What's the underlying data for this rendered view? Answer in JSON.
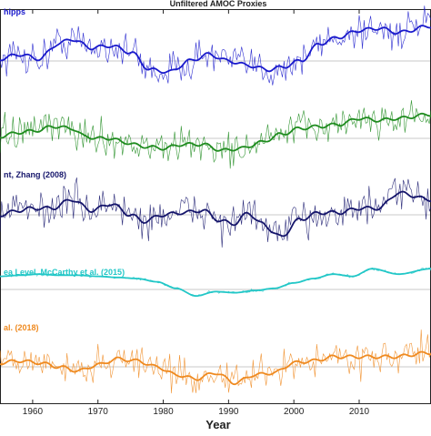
{
  "chart_data": {
    "type": "line",
    "title": "Unfiltered AMOC Proxies",
    "xlabel": "Year",
    "xlim": [
      1955,
      2021
    ],
    "x_ticks": [
      "1960",
      "1970",
      "1980",
      "1990",
      "2000",
      "2010"
    ],
    "series": [
      {
        "name": "hipps",
        "color": "#1a1acc",
        "baseline": 0,
        "amp": 1.2,
        "smooth_x": [
          1955,
          1958,
          1961,
          1964,
          1966,
          1969,
          1972,
          1975,
          1978,
          1981,
          1984,
          1987,
          1990,
          1993,
          1996,
          1998,
          2001,
          2004,
          2007,
          2010,
          2013,
          2016,
          2021
        ],
        "smooth_y": [
          0.1,
          0.3,
          0.1,
          0.8,
          1.0,
          0.6,
          0.7,
          0.4,
          -0.4,
          -0.5,
          0.0,
          0.3,
          0.0,
          -0.2,
          -0.4,
          -0.3,
          0.0,
          0.8,
          1.1,
          1.4,
          1.5,
          1.3,
          1.6
        ]
      },
      {
        "name": "",
        "color": "#1f8c1f",
        "baseline": 0,
        "amp": 1.2,
        "smooth_x": [
          1955,
          1958,
          1961,
          1963,
          1966,
          1968,
          1970,
          1972,
          1974,
          1977,
          1980,
          1983,
          1986,
          1989,
          1992,
          1995,
          1998,
          2001,
          2004,
          2007,
          2010,
          2013,
          2016,
          2021
        ],
        "smooth_y": [
          0.1,
          0.3,
          0.4,
          0.6,
          0.5,
          0.1,
          0.0,
          0.0,
          -0.2,
          -0.4,
          -0.5,
          -0.3,
          -0.3,
          -0.6,
          -0.5,
          -0.2,
          0.2,
          0.5,
          0.6,
          0.7,
          1.0,
          0.9,
          1.0,
          1.2
        ]
      },
      {
        "name": "nt, Zhang (2008)",
        "color": "#15156b",
        "baseline": 0,
        "amp": 1.2,
        "smooth_x": [
          1955,
          1958,
          1960,
          1963,
          1966,
          1969,
          1972,
          1975,
          1977,
          1980,
          1983,
          1986,
          1989,
          1991,
          1993,
          1995,
          1998,
          2001,
          2004,
          2007,
          2010,
          2013,
          2016,
          2021
        ],
        "smooth_y": [
          0.0,
          0.2,
          0.3,
          0.3,
          0.7,
          0.2,
          0.5,
          0.0,
          -0.3,
          0.0,
          0.1,
          0.2,
          -0.3,
          -0.4,
          0.1,
          -0.4,
          -1.0,
          -0.2,
          0.1,
          0.1,
          0.3,
          0.3,
          1.0,
          0.7
        ]
      },
      {
        "name": "ea Level, McCarthy et al. (2015)",
        "color": "#22c7c7",
        "baseline": 0,
        "amp": 0.2,
        "smooth_x": [
          1955,
          1958,
          1961,
          1964,
          1967,
          1970,
          1973,
          1976,
          1979,
          1982,
          1985,
          1988,
          1991,
          1994,
          1997,
          2000,
          2003,
          2006,
          2009,
          2012,
          2016,
          2021
        ],
        "smooth_y": [
          1.2,
          1.3,
          1.4,
          1.3,
          1.3,
          1.2,
          1.1,
          1.0,
          0.7,
          0.1,
          -0.6,
          -0.2,
          -0.3,
          -0.1,
          0.1,
          0.6,
          1.0,
          1.4,
          1.2,
          1.9,
          1.4,
          1.9
        ]
      },
      {
        "name": "al. (2018)",
        "color": "#ef8a20",
        "baseline": 0,
        "amp": 1.2,
        "smooth_x": [
          1955,
          1958,
          1961,
          1964,
          1967,
          1970,
          1973,
          1976,
          1979,
          1982,
          1985,
          1988,
          1991,
          1994,
          1997,
          2000,
          2003,
          2006,
          2009,
          2012,
          2015,
          2021
        ],
        "smooth_y": [
          0.2,
          0.3,
          0.2,
          0.0,
          -0.2,
          0.1,
          0.4,
          0.3,
          0.0,
          -0.4,
          -0.6,
          -0.3,
          -0.8,
          -0.4,
          -0.3,
          0.2,
          0.3,
          0.5,
          0.5,
          0.5,
          0.5,
          0.7
        ]
      }
    ]
  }
}
